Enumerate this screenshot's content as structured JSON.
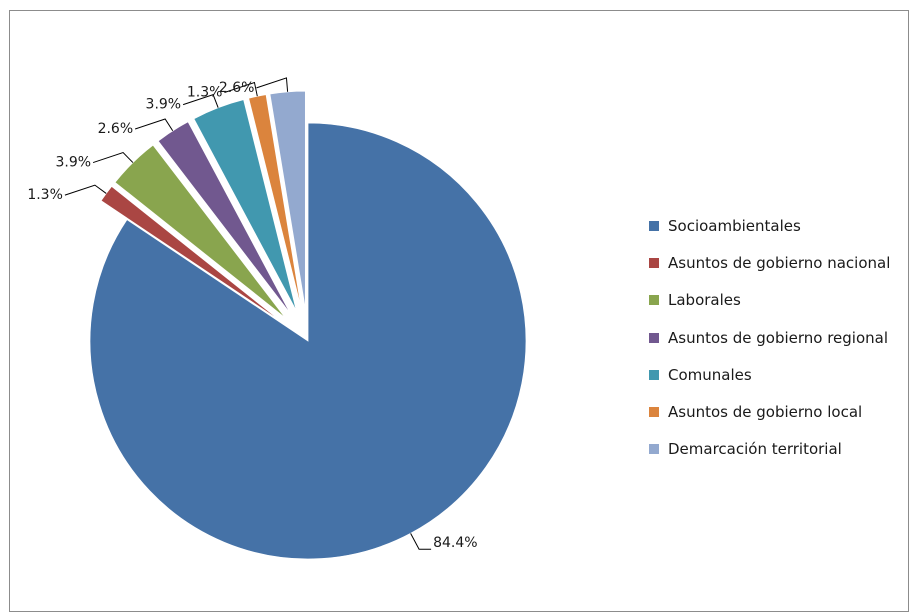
{
  "chart_data": {
    "type": "pie",
    "categories": [
      "Socioambientales",
      "Asuntos de gobierno nacional",
      "Laborales",
      "Asuntos de gobierno regional",
      "Comunales",
      "Asuntos de gobierno local",
      "Demarcación territorial"
    ],
    "values": [
      84.4,
      1.3,
      3.9,
      2.6,
      3.9,
      1.3,
      2.6
    ],
    "labels": [
      "84.4%",
      "1.3%",
      "3.9%",
      "2.6%",
      "3.9%",
      "1.3%",
      "2.6%"
    ],
    "colors": [
      "#4572a7",
      "#aa4643",
      "#89a54e",
      "#71588f",
      "#4198af",
      "#db843d",
      "#93a9cf"
    ],
    "exploded": [
      false,
      true,
      true,
      true,
      true,
      true,
      true
    ],
    "legend_position": "right"
  }
}
